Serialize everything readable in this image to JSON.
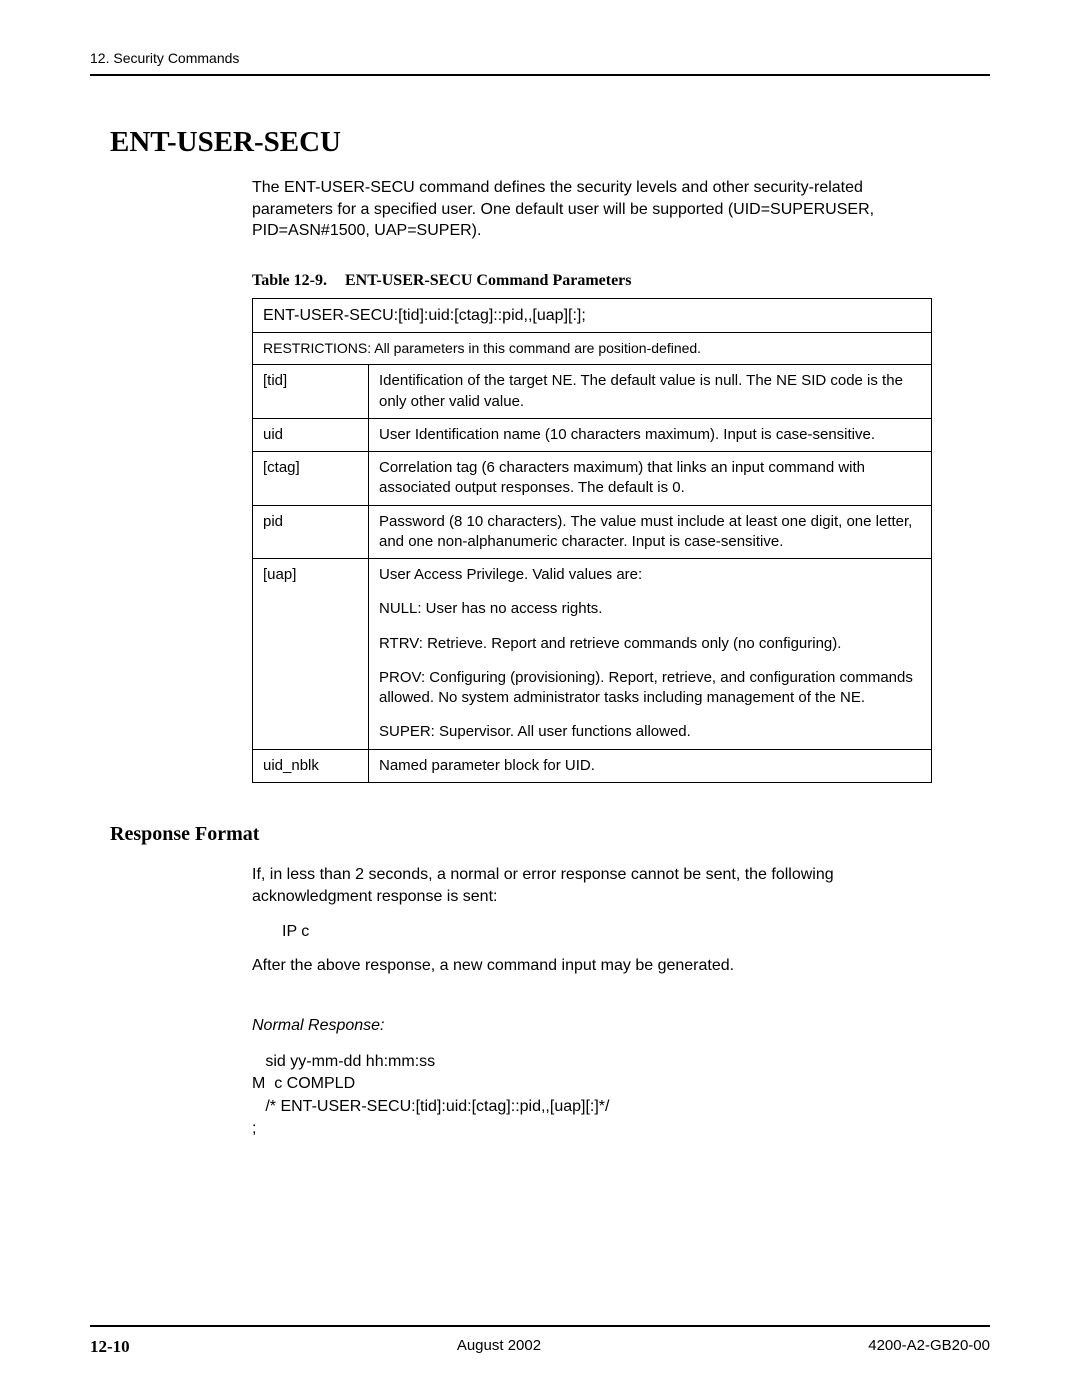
{
  "header": {
    "text": "12. Security Commands"
  },
  "section": {
    "title": "ENT-USER-SECU",
    "intro": "The ENT-USER-SECU command defines the security levels and other security-related parameters for a specified user. One default user will be supported (UID=SUPERUSER, PID=ASN#1500, UAP=SUPER)."
  },
  "table": {
    "caption_label": "Table 12-9.",
    "caption_title": "ENT-USER-SECU Command Parameters",
    "syntax": "ENT-USER-SECU:[tid]:uid:[ctag]::pid,,[uap][:];",
    "restrictions": "RESTRICTIONS: All parameters in this command are position-defined.",
    "rows": [
      {
        "param": "[tid]",
        "desc": "Identification of the target NE. The default value is null. The NE SID code is the only other valid value."
      },
      {
        "param": "uid",
        "desc": "User Identification name (10 characters maximum). Input is case-sensitive."
      },
      {
        "param": "[ctag]",
        "desc": "Correlation tag (6 characters maximum) that links an input command with associated output responses. The default is 0."
      },
      {
        "param": "pid",
        "desc": "Password (8  10 characters). The value must include at least one digit, one letter, and one non-alphanumeric character. Input is case-sensitive."
      }
    ],
    "uap": {
      "param": "[uap]",
      "lines": [
        "User Access Privilege. Valid values are:",
        "NULL: User has no access rights.",
        "RTRV: Retrieve. Report and retrieve commands only (no configuring).",
        "PROV: Configuring (provisioning). Report, retrieve, and configuration commands allowed. No system administrator tasks including management of the NE.",
        "SUPER: Supervisor. All user functions allowed."
      ]
    },
    "last_row": {
      "param": "uid_nblk",
      "desc": "Named parameter block for UID."
    }
  },
  "response": {
    "heading": "Response Format",
    "p1": "If, in less than 2 seconds, a normal or error response cannot be sent, the following acknowledgment response is sent:",
    "ip": "IP c",
    "p2": "After the above response, a new command input may be generated.",
    "normal_label": "Normal Response:",
    "code": "   sid yy-mm-dd hh:mm:ss\nM  c COMPLD\n   /* ENT-USER-SECU:[tid]:uid:[ctag]::pid,,[uap][:]*/\n;"
  },
  "footer": {
    "left": "12-10",
    "center": "August 2002",
    "right": "4200-A2-GB20-00"
  }
}
